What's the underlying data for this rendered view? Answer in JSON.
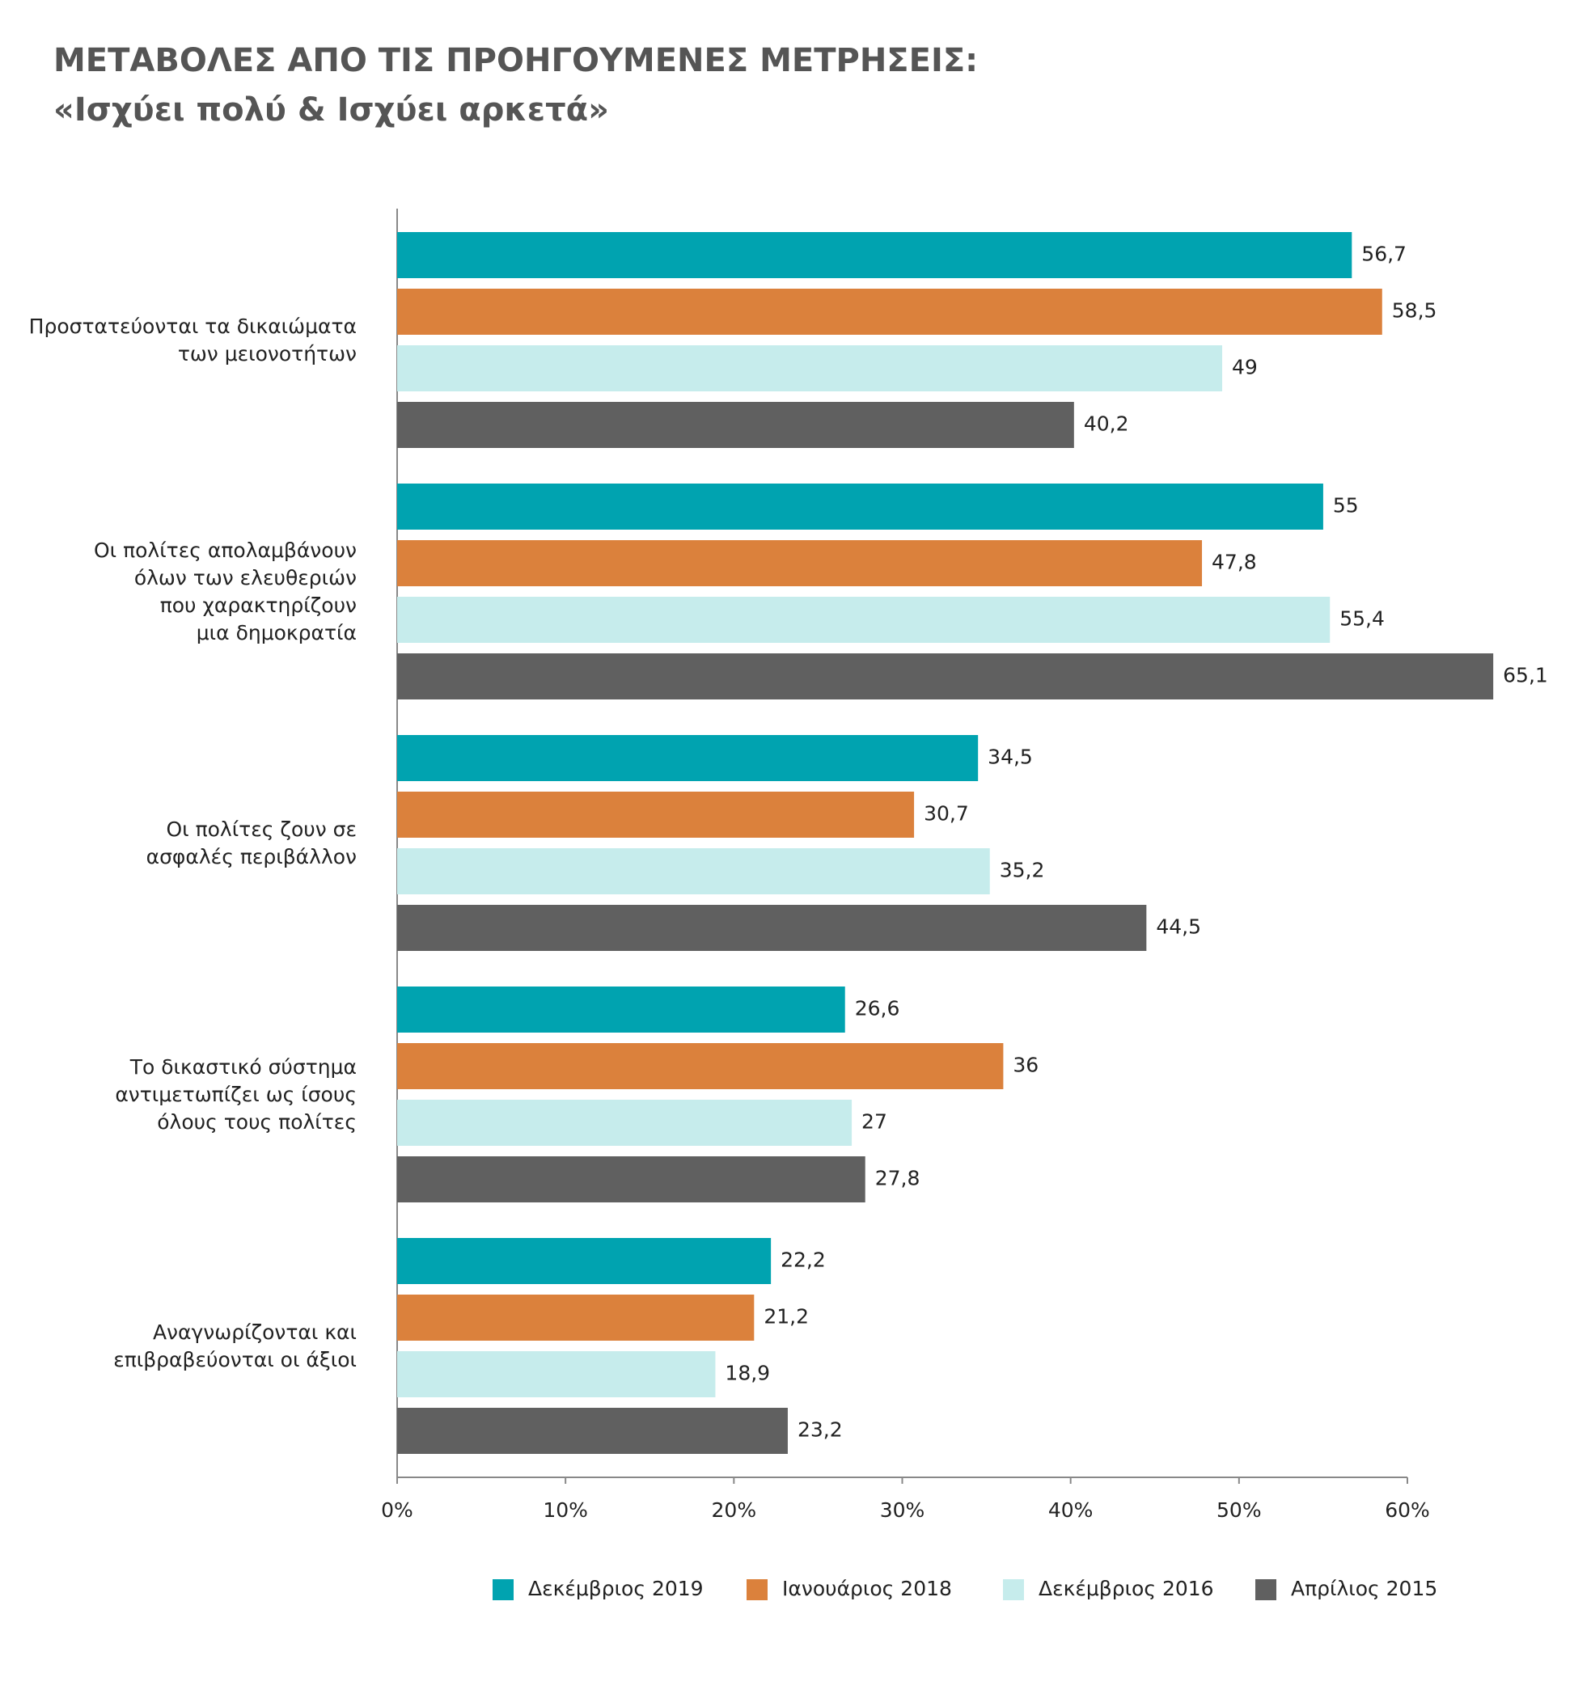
{
  "chart_data": {
    "type": "barh",
    "title": "ΜΕΤΑΒΟΛΕΣ ΑΠΟ ΤΙΣ ΠΡΟΗΓΟΥΜΕΝΕΣ ΜΕΤΡΗΣΕΙΣ:",
    "subtitle": "«Ισχύει πολύ & Ισχύει αρκετά»",
    "categories": [
      "Προστατεύονται τα δικαιώματα\nτων μειονοτήτων",
      "Οι πολίτες απολαμβάνουν\nόλων των ελευθεριών\nπου χαρακτηρίζουν\nμια δημοκρατία",
      "Οι πολίτες ζουν σε\nασφαλές περιβάλλον",
      "Το δικαστικό σύστημα\nαντιμετωπίζει ως ίσους\nόλους τους πολίτες",
      "Αναγνωρίζονται και\nεπιβραβεύονται οι άξιοι"
    ],
    "series": [
      {
        "name": "Δεκέμβριος 2019",
        "color": "#00a3b0",
        "values": [
          56.7,
          55,
          34.5,
          26.6,
          22.2
        ],
        "value_labels": [
          "56,7",
          "55",
          "34,5",
          "26,6",
          "22,2"
        ]
      },
      {
        "name": "Ιανουάριος 2018",
        "color": "#db813c",
        "values": [
          58.5,
          47.8,
          30.7,
          36,
          21.2
        ],
        "value_labels": [
          "58,5",
          "47,8",
          "30,7",
          "36",
          "21,2"
        ]
      },
      {
        "name": "Δεκέμβριος 2016",
        "color": "#c6ecec",
        "values": [
          49,
          55.4,
          35.2,
          27,
          18.9
        ],
        "value_labels": [
          "49",
          "55,4",
          "35,2",
          "27",
          "18,9"
        ]
      },
      {
        "name": "Απρίλιος 2015",
        "color": "#606060",
        "values": [
          40.2,
          65.1,
          44.5,
          27.8,
          23.2
        ],
        "value_labels": [
          "40,2",
          "65,1",
          "44,5",
          "27,8",
          "23,2"
        ]
      }
    ],
    "xlim": [
      0,
      60
    ],
    "xticks": [
      {
        "value": 0,
        "label": "0%"
      },
      {
        "value": 10,
        "label": "10%"
      },
      {
        "value": 20,
        "label": "20%"
      },
      {
        "value": 30,
        "label": "30%"
      },
      {
        "value": 40,
        "label": "40%"
      },
      {
        "value": 50,
        "label": "50%"
      },
      {
        "value": 60,
        "label": "60%"
      }
    ],
    "legend": "bottom"
  }
}
